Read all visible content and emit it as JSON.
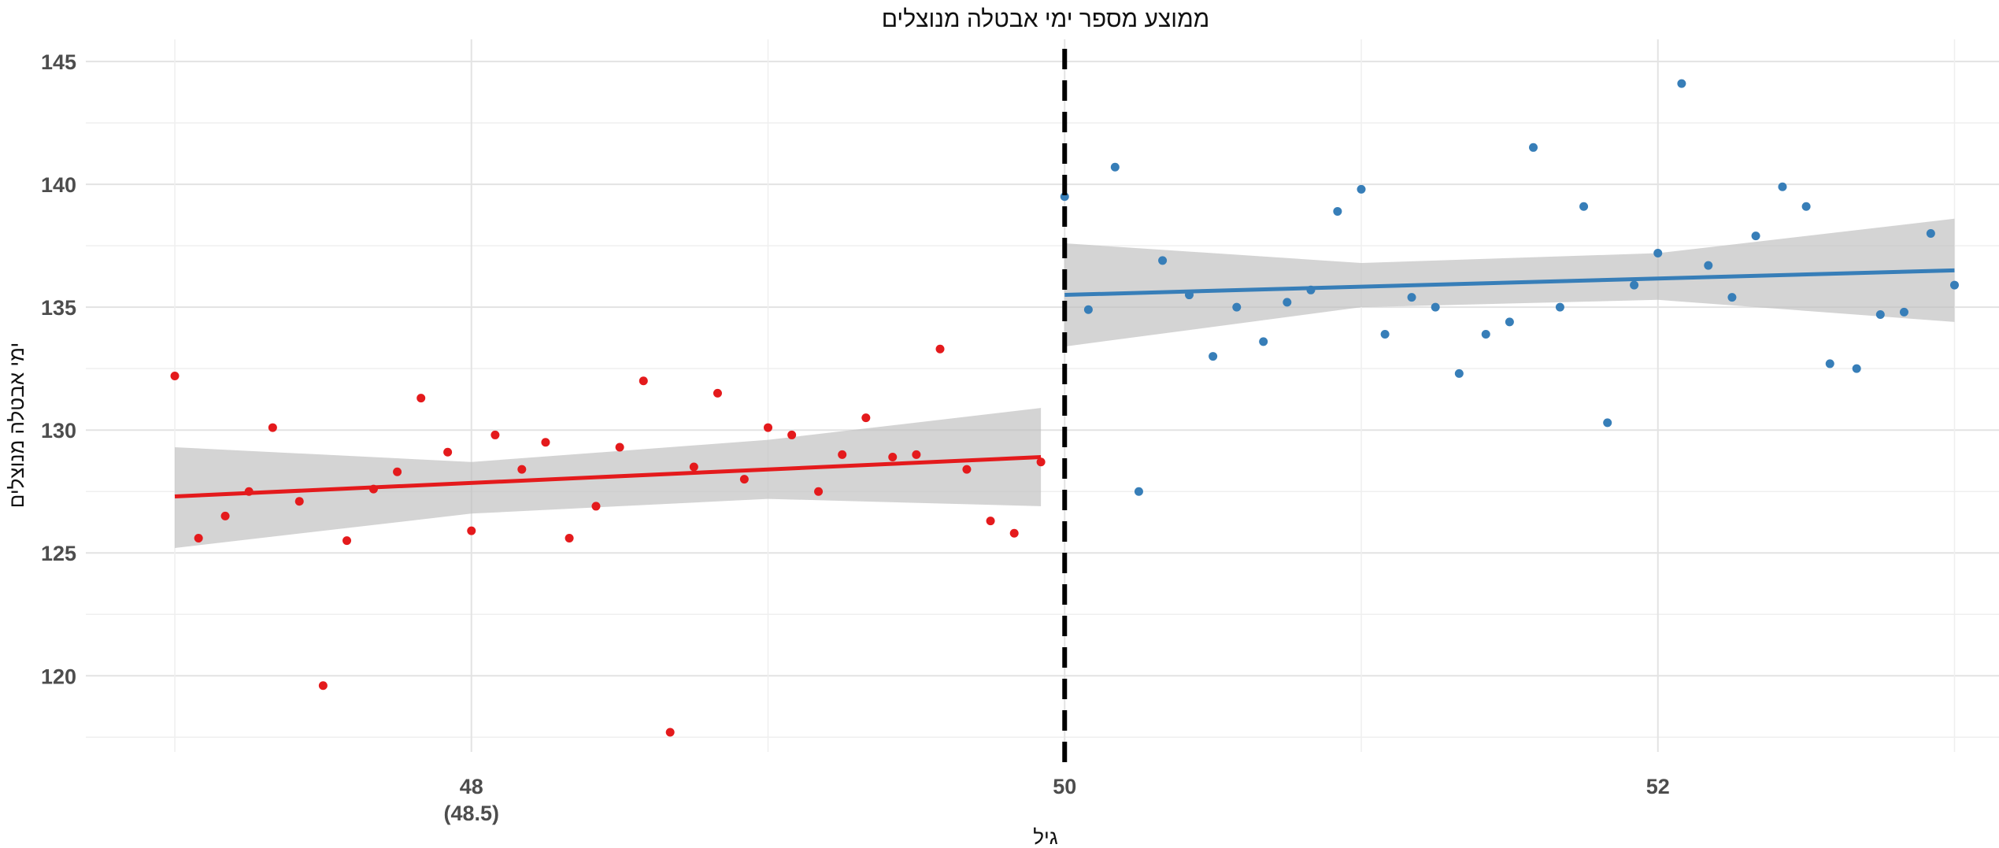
{
  "chart_data": {
    "type": "scatter",
    "title": "ממוצע מספר ימי אבטלה מנוצלים",
    "xlabel": "גיל",
    "ylabel": "ימי אבטלה מנוצלים",
    "xlim": [
      46.7,
      53.15
    ],
    "ylim": [
      116.9,
      145.9
    ],
    "x_ticks": [
      {
        "value": 48,
        "label": "48",
        "sublabel": "(48.5)"
      },
      {
        "value": 50,
        "label": "50",
        "sublabel": ""
      },
      {
        "value": 52,
        "label": "52",
        "sublabel": ""
      }
    ],
    "y_ticks": [
      120,
      125,
      130,
      135,
      140,
      145
    ],
    "grid": true,
    "cutoff": {
      "x": 50,
      "style": "dashed",
      "color": "#000000"
    },
    "series": [
      {
        "color": "#e41a1c",
        "points": [
          [
            47.0,
            132.2
          ],
          [
            47.08,
            125.6
          ],
          [
            47.17,
            126.5
          ],
          [
            47.25,
            127.5
          ],
          [
            47.33,
            130.1
          ],
          [
            47.42,
            127.1
          ],
          [
            47.5,
            119.6
          ],
          [
            47.58,
            125.5
          ],
          [
            47.67,
            127.6
          ],
          [
            47.75,
            128.3
          ],
          [
            47.83,
            131.3
          ],
          [
            47.92,
            129.1
          ],
          [
            48.0,
            125.9
          ],
          [
            48.08,
            129.8
          ],
          [
            48.17,
            128.4
          ],
          [
            48.25,
            129.5
          ],
          [
            48.33,
            125.6
          ],
          [
            48.42,
            126.9
          ],
          [
            48.5,
            129.3
          ],
          [
            48.58,
            132.0
          ],
          [
            48.67,
            117.7
          ],
          [
            48.75,
            128.5
          ],
          [
            48.83,
            131.5
          ],
          [
            48.92,
            128.0
          ],
          [
            49.0,
            130.1
          ],
          [
            49.08,
            129.8
          ],
          [
            49.17,
            127.5
          ],
          [
            49.25,
            129.0
          ],
          [
            49.33,
            130.5
          ],
          [
            49.42,
            128.9
          ],
          [
            49.5,
            129.0
          ],
          [
            49.58,
            133.3
          ],
          [
            49.67,
            128.4
          ],
          [
            49.75,
            126.3
          ],
          [
            49.83,
            125.8
          ],
          [
            49.92,
            128.7
          ]
        ],
        "fit": {
          "x": [
            47.0,
            49.92
          ],
          "y": [
            127.3,
            128.9
          ]
        },
        "ci": {
          "x": [
            47.0,
            48.0,
            49.0,
            49.92
          ],
          "lower": [
            125.2,
            126.6,
            127.2,
            126.9
          ],
          "upper": [
            129.3,
            128.7,
            129.6,
            130.9
          ]
        }
      },
      {
        "color": "#377eb8",
        "points": [
          [
            50.0,
            139.5
          ],
          [
            50.08,
            134.9
          ],
          [
            50.17,
            140.7
          ],
          [
            50.25,
            127.5
          ],
          [
            50.33,
            136.9
          ],
          [
            50.42,
            135.5
          ],
          [
            50.5,
            133.0
          ],
          [
            50.58,
            135.0
          ],
          [
            50.67,
            133.6
          ],
          [
            50.75,
            135.2
          ],
          [
            50.83,
            135.7
          ],
          [
            50.92,
            138.9
          ],
          [
            51.0,
            139.8
          ],
          [
            51.08,
            133.9
          ],
          [
            51.17,
            135.4
          ],
          [
            51.25,
            135.0
          ],
          [
            51.33,
            132.3
          ],
          [
            51.42,
            133.9
          ],
          [
            51.5,
            134.4
          ],
          [
            51.58,
            141.5
          ],
          [
            51.67,
            135.0
          ],
          [
            51.75,
            139.1
          ],
          [
            51.83,
            130.3
          ],
          [
            51.92,
            135.9
          ],
          [
            52.0,
            137.2
          ],
          [
            52.08,
            144.1
          ],
          [
            52.17,
            136.7
          ],
          [
            52.25,
            135.4
          ],
          [
            52.33,
            137.9
          ],
          [
            52.42,
            139.9
          ],
          [
            52.5,
            139.1
          ],
          [
            52.58,
            132.7
          ],
          [
            52.67,
            132.5
          ],
          [
            52.75,
            134.7
          ],
          [
            52.83,
            134.8
          ],
          [
            52.92,
            138.0
          ],
          [
            53.0,
            135.9
          ]
        ],
        "fit": {
          "x": [
            50.0,
            53.0
          ],
          "y": [
            135.5,
            136.5
          ]
        },
        "ci": {
          "x": [
            50.0,
            51.0,
            52.0,
            53.0
          ],
          "lower": [
            133.4,
            135.0,
            135.3,
            134.4
          ],
          "upper": [
            137.6,
            136.8,
            137.2,
            138.6
          ]
        }
      }
    ]
  }
}
